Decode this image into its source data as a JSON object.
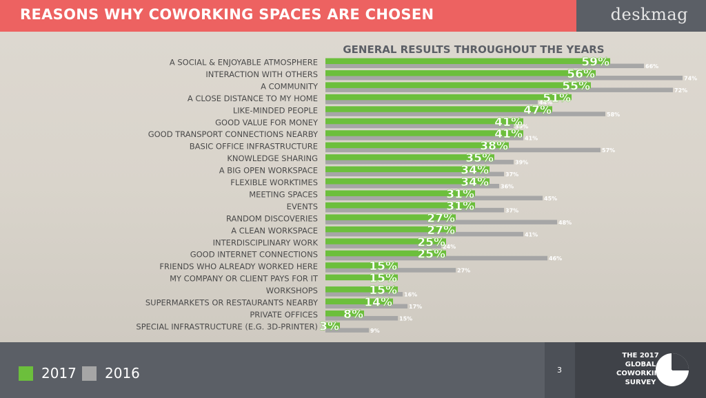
{
  "header": {
    "title": "REASONS WHY COWORKING SPACES ARE CHOSEN",
    "brand": "deskmag"
  },
  "footer": {
    "legend": [
      {
        "label": "2017",
        "color": "#6cbf3c"
      },
      {
        "label": "2016",
        "color": "#a6a6a6"
      }
    ],
    "page_number": "3",
    "survey_lines": [
      "THE 2017",
      "GLOBAL",
      "COWORKING",
      "SURVEY"
    ],
    "icon": "pie-chart-icon"
  },
  "colors": {
    "title_bar": "#ed6261",
    "brand_bar": "#5b5f66",
    "series_2017": "#6cbf3c",
    "series_2016": "#a6a6a6"
  },
  "chart_data": {
    "type": "bar",
    "orientation": "horizontal",
    "title": "GENERAL RESULTS THROUGHOUT THE YEARS",
    "value_suffix": "%",
    "categories": [
      "A SOCIAL & ENJOYABLE ATMOSPHERE",
      "INTERACTION WITH OTHERS",
      "A COMMUNITY",
      "A CLOSE DISTANCE TO MY HOME",
      "LIKE-MINDED PEOPLE",
      "GOOD VALUE FOR MONEY",
      "GOOD TRANSPORT CONNECTIONS NEARBY",
      "BASIC OFFICE INFRASTRUCTURE",
      "KNOWLEDGE SHARING",
      "A BIG OPEN WORKSPACE",
      "FLEXIBLE WORKTIMES",
      "MEETING SPACES",
      "EVENTS",
      "RANDOM DISCOVERIES",
      "A CLEAN WORKSPACE",
      "INTERDISCIPLINARY WORK",
      "GOOD INTERNET CONNECTIONS",
      "FRIENDS WHO ALREADY WORKED HERE",
      "MY COMPANY OR CLIENT PAYS FOR IT",
      "WORKSHOPS",
      "SUPERMARKETS OR RESTAURANTS NEARBY",
      "PRIVATE OFFICES",
      "SPECIAL INFRASTRUCTURE (E.G. 3D-PRINTER)"
    ],
    "series": [
      {
        "name": "2017",
        "values": [
          59,
          56,
          55,
          51,
          47,
          41,
          41,
          38,
          35,
          34,
          34,
          31,
          31,
          27,
          27,
          25,
          25,
          15,
          15,
          15,
          14,
          8,
          3
        ]
      },
      {
        "name": "2016",
        "values": [
          66,
          74,
          72,
          44,
          58,
          39,
          41,
          57,
          39,
          37,
          36,
          45,
          37,
          48,
          41,
          24,
          46,
          27,
          null,
          16,
          17,
          15,
          9
        ]
      }
    ],
    "xlim": [
      0,
      80
    ],
    "grid": false,
    "legend": "bottom-left"
  }
}
